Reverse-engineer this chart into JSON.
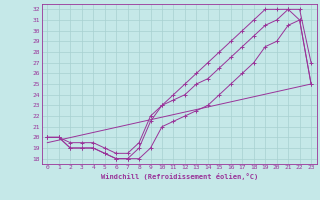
{
  "xlabel": "Windchill (Refroidissement éolien,°C)",
  "xlim": [
    -0.5,
    23.5
  ],
  "ylim": [
    17.5,
    32.5
  ],
  "xticks": [
    0,
    1,
    2,
    3,
    4,
    5,
    6,
    7,
    8,
    9,
    10,
    11,
    12,
    13,
    14,
    15,
    16,
    17,
    18,
    19,
    20,
    21,
    22,
    23
  ],
  "yticks": [
    18,
    19,
    20,
    21,
    22,
    23,
    24,
    25,
    26,
    27,
    28,
    29,
    30,
    31,
    32
  ],
  "background_color": "#c5e8e8",
  "grid_color": "#a8d0d0",
  "line_color": "#993399",
  "curves": [
    {
      "x": [
        0,
        1,
        2,
        3,
        4,
        5,
        6,
        7,
        8,
        9,
        10,
        11,
        12,
        13,
        14,
        15,
        16,
        17,
        18,
        19,
        20,
        21,
        22,
        23
      ],
      "y": [
        20,
        20,
        19,
        19,
        19,
        18.5,
        18,
        18,
        18,
        19,
        21,
        21.5,
        22,
        22.5,
        23,
        24,
        25,
        26,
        27,
        28.5,
        29,
        30.5,
        31,
        25
      ],
      "marker": true
    },
    {
      "x": [
        0,
        1,
        2,
        3,
        4,
        5,
        6,
        7,
        8,
        9,
        10,
        11,
        12,
        13,
        14,
        15,
        16,
        17,
        18,
        19,
        20,
        21,
        22,
        23
      ],
      "y": [
        20,
        20,
        19.5,
        19.5,
        19.5,
        19,
        18.5,
        18.5,
        19.5,
        22,
        23,
        23.5,
        24,
        25,
        25.5,
        26.5,
        27.5,
        28.5,
        29.5,
        30.5,
        31,
        32,
        32,
        27
      ],
      "marker": true
    },
    {
      "x": [
        0,
        1,
        2,
        3,
        4,
        5,
        6,
        7,
        8,
        9,
        10,
        11,
        12,
        13,
        14,
        15,
        16,
        17,
        18,
        19,
        20,
        21,
        22,
        23
      ],
      "y": [
        20,
        20,
        19,
        19,
        19,
        18.5,
        18,
        18,
        19,
        21.5,
        23,
        24,
        25,
        26,
        27,
        28,
        29,
        30,
        31,
        32,
        32,
        32,
        31,
        25
      ],
      "marker": true
    },
    {
      "x": [
        0,
        23
      ],
      "y": [
        19.5,
        25
      ],
      "marker": false
    }
  ]
}
